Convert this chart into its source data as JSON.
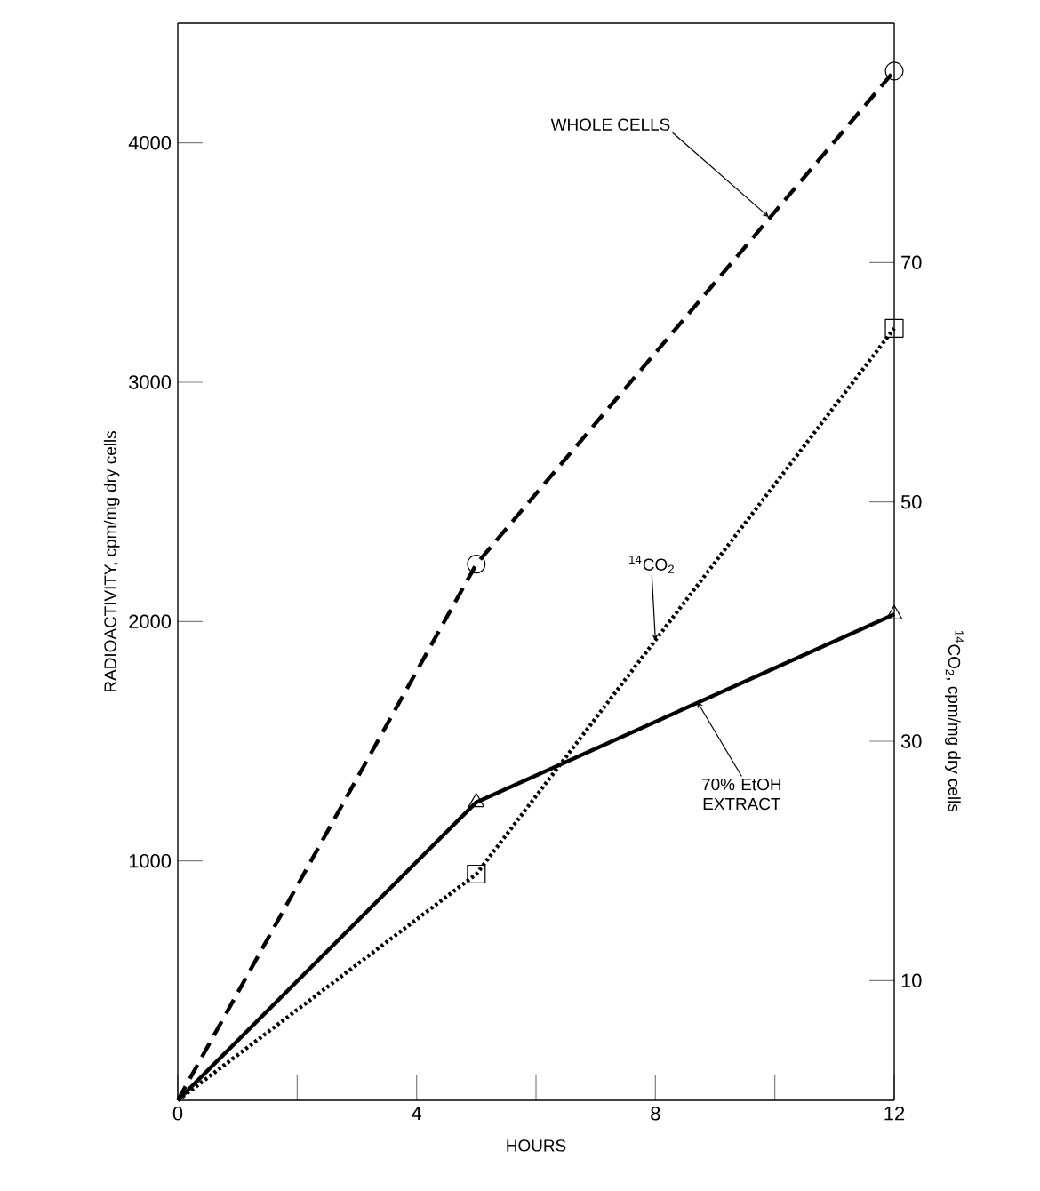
{
  "chart_data": {
    "type": "line",
    "xlabel": "HOURS",
    "ylabel": "RADIOACTIVITY,  cpm/mg dry cells",
    "y2label": "$^{14}$CO$_{2}$,  cpm/mg dry cells",
    "xlim": [
      0,
      12
    ],
    "xticks": [
      0,
      {
        "value": 2,
        "label": null
      },
      4,
      {
        "value": 6,
        "label": null
      },
      8,
      {
        "value": 10,
        "label": null
      },
      12
    ],
    "ylim": [
      0,
      4500
    ],
    "yticks": [
      1000,
      2000,
      3000,
      4000
    ],
    "y2lim": [
      0,
      90
    ],
    "y2ticks": [
      10,
      30,
      50,
      70
    ],
    "series": [
      {
        "color": "#000000",
        "x": [
          0,
          5,
          12
        ],
        "values": [
          0,
          2240,
          4300
        ],
        "marker": "circle",
        "line_style": "dashed"
      },
      {
        "color": "#000000",
        "x": [
          0,
          5,
          12
        ],
        "values": [
          0,
          1245,
          2030
        ],
        "marker": "triangle",
        "line_style": "solid"
      },
      {
        "color": "#000000",
        "x": [
          0,
          5,
          12
        ],
        "values": [
          0,
          18.9,
          64.5
        ],
        "marker": "square",
        "line_style": "dotted",
        "axis": "y2"
      }
    ],
    "annotations": [
      {
        "text": "WHOLE CELLS",
        "x": 9.9,
        "y": 3690
      },
      {
        "text": "$^{14}$CO$_{2}$",
        "x": 8.0,
        "y": 1920
      },
      {
        "text": "70% EtOH EXTRACT",
        "x": 8.7,
        "y": 1665
      }
    ]
  }
}
